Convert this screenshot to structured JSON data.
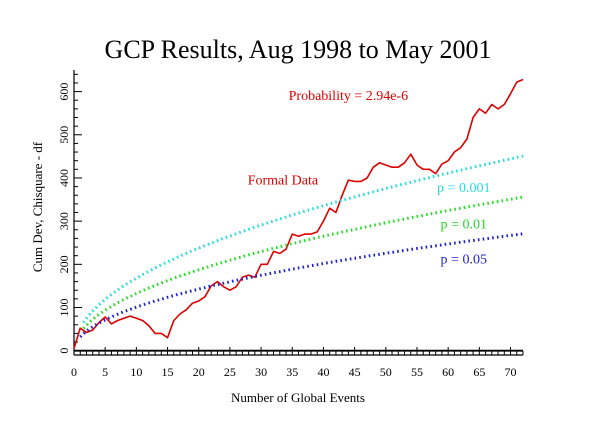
{
  "chart_data": {
    "type": "line",
    "title": "GCP Results, Aug 1998 to May 2001",
    "xlabel": "Number of Global Events",
    "ylabel": "Cum Dev, Chisquare - df",
    "xlim": [
      0,
      72
    ],
    "ylim": [
      -10,
      650
    ],
    "xticks": [
      0,
      5,
      10,
      15,
      20,
      25,
      30,
      35,
      40,
      45,
      50,
      55,
      60,
      65,
      70
    ],
    "yticks": [
      0,
      100,
      200,
      300,
      400,
      500,
      600
    ],
    "grid": false,
    "zero_line": true,
    "colors": {
      "data": "#dd0000",
      "p001": "#22dddd",
      "p01": "#22dd22",
      "p05": "#2222cc",
      "axis": "#000000"
    },
    "series": [
      {
        "name": "Formal Data",
        "style": "solid",
        "x": [
          0,
          1,
          2,
          3,
          4,
          5,
          6,
          7,
          8,
          9,
          10,
          11,
          12,
          13,
          14,
          15,
          16,
          17,
          18,
          19,
          20,
          21,
          22,
          23,
          24,
          25,
          26,
          27,
          28,
          29,
          30,
          31,
          32,
          33,
          34,
          35,
          36,
          37,
          38,
          39,
          40,
          41,
          42,
          43,
          44,
          45,
          46,
          47,
          48,
          49,
          50,
          51,
          52,
          53,
          54,
          55,
          56,
          57,
          58,
          59,
          60,
          61,
          62,
          63,
          64,
          65,
          66,
          67,
          68,
          69,
          70,
          71,
          72
        ],
        "y": [
          5,
          52,
          42,
          48,
          65,
          78,
          62,
          70,
          75,
          80,
          75,
          70,
          58,
          40,
          40,
          30,
          70,
          85,
          95,
          110,
          115,
          125,
          150,
          160,
          148,
          140,
          148,
          170,
          175,
          170,
          200,
          200,
          230,
          225,
          235,
          270,
          265,
          270,
          270,
          275,
          300,
          330,
          320,
          360,
          395,
          392,
          392,
          400,
          425,
          435,
          430,
          425,
          425,
          435,
          455,
          430,
          420,
          420,
          410,
          432,
          440,
          460,
          470,
          490,
          540,
          560,
          550,
          570,
          560,
          570,
          595,
          622,
          628
        ]
      },
      {
        "name": "p = 0.001",
        "style": "dotted",
        "function": "sqrt",
        "coef": 53.1,
        "x_start": 1.5
      },
      {
        "name": "p = 0.01",
        "style": "dotted",
        "function": "sqrt",
        "coef": 41.9,
        "x_start": 1.5
      },
      {
        "name": "p = 0.05",
        "style": "dotted",
        "function": "sqrt",
        "coef": 31.9,
        "x_start": 1
      }
    ],
    "annotations": [
      {
        "text": "Probability = 2.94e-6",
        "color": "#dd0000",
        "x": 44.0,
        "y": 580
      },
      {
        "text": "Formal Data",
        "color": "#dd0000",
        "x": 33.5,
        "y": 385
      },
      {
        "text": "p = 0.001",
        "color": "#22dddd",
        "x": 62.5,
        "y": 368
      },
      {
        "text": "p = 0.01",
        "color": "#22dd22",
        "x": 62.5,
        "y": 283
      },
      {
        "text": "p = 0.05",
        "color": "#2222cc",
        "x": 62.5,
        "y": 202
      }
    ]
  }
}
